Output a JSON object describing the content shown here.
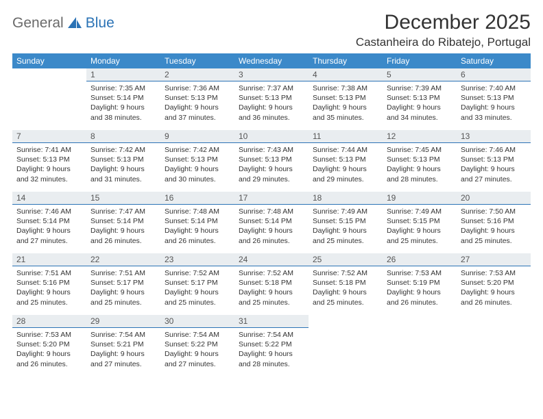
{
  "logo": {
    "text1": "General",
    "text2": "Blue"
  },
  "title": "December 2025",
  "location": "Castanheira do Ribatejo, Portugal",
  "header_bg": "#3b89c9",
  "bar_bg": "#e9edf0",
  "bar_border": "#2a72b5",
  "weekdays": [
    "Sunday",
    "Monday",
    "Tuesday",
    "Wednesday",
    "Thursday",
    "Friday",
    "Saturday"
  ],
  "first_weekday": 1,
  "days": [
    {
      "n": 1,
      "sunrise": "7:35 AM",
      "sunset": "5:14 PM",
      "dl": "9 hours and 38 minutes."
    },
    {
      "n": 2,
      "sunrise": "7:36 AM",
      "sunset": "5:13 PM",
      "dl": "9 hours and 37 minutes."
    },
    {
      "n": 3,
      "sunrise": "7:37 AM",
      "sunset": "5:13 PM",
      "dl": "9 hours and 36 minutes."
    },
    {
      "n": 4,
      "sunrise": "7:38 AM",
      "sunset": "5:13 PM",
      "dl": "9 hours and 35 minutes."
    },
    {
      "n": 5,
      "sunrise": "7:39 AM",
      "sunset": "5:13 PM",
      "dl": "9 hours and 34 minutes."
    },
    {
      "n": 6,
      "sunrise": "7:40 AM",
      "sunset": "5:13 PM",
      "dl": "9 hours and 33 minutes."
    },
    {
      "n": 7,
      "sunrise": "7:41 AM",
      "sunset": "5:13 PM",
      "dl": "9 hours and 32 minutes."
    },
    {
      "n": 8,
      "sunrise": "7:42 AM",
      "sunset": "5:13 PM",
      "dl": "9 hours and 31 minutes."
    },
    {
      "n": 9,
      "sunrise": "7:42 AM",
      "sunset": "5:13 PM",
      "dl": "9 hours and 30 minutes."
    },
    {
      "n": 10,
      "sunrise": "7:43 AM",
      "sunset": "5:13 PM",
      "dl": "9 hours and 29 minutes."
    },
    {
      "n": 11,
      "sunrise": "7:44 AM",
      "sunset": "5:13 PM",
      "dl": "9 hours and 29 minutes."
    },
    {
      "n": 12,
      "sunrise": "7:45 AM",
      "sunset": "5:13 PM",
      "dl": "9 hours and 28 minutes."
    },
    {
      "n": 13,
      "sunrise": "7:46 AM",
      "sunset": "5:13 PM",
      "dl": "9 hours and 27 minutes."
    },
    {
      "n": 14,
      "sunrise": "7:46 AM",
      "sunset": "5:14 PM",
      "dl": "9 hours and 27 minutes."
    },
    {
      "n": 15,
      "sunrise": "7:47 AM",
      "sunset": "5:14 PM",
      "dl": "9 hours and 26 minutes."
    },
    {
      "n": 16,
      "sunrise": "7:48 AM",
      "sunset": "5:14 PM",
      "dl": "9 hours and 26 minutes."
    },
    {
      "n": 17,
      "sunrise": "7:48 AM",
      "sunset": "5:14 PM",
      "dl": "9 hours and 26 minutes."
    },
    {
      "n": 18,
      "sunrise": "7:49 AM",
      "sunset": "5:15 PM",
      "dl": "9 hours and 25 minutes."
    },
    {
      "n": 19,
      "sunrise": "7:49 AM",
      "sunset": "5:15 PM",
      "dl": "9 hours and 25 minutes."
    },
    {
      "n": 20,
      "sunrise": "7:50 AM",
      "sunset": "5:16 PM",
      "dl": "9 hours and 25 minutes."
    },
    {
      "n": 21,
      "sunrise": "7:51 AM",
      "sunset": "5:16 PM",
      "dl": "9 hours and 25 minutes."
    },
    {
      "n": 22,
      "sunrise": "7:51 AM",
      "sunset": "5:17 PM",
      "dl": "9 hours and 25 minutes."
    },
    {
      "n": 23,
      "sunrise": "7:52 AM",
      "sunset": "5:17 PM",
      "dl": "9 hours and 25 minutes."
    },
    {
      "n": 24,
      "sunrise": "7:52 AM",
      "sunset": "5:18 PM",
      "dl": "9 hours and 25 minutes."
    },
    {
      "n": 25,
      "sunrise": "7:52 AM",
      "sunset": "5:18 PM",
      "dl": "9 hours and 25 minutes."
    },
    {
      "n": 26,
      "sunrise": "7:53 AM",
      "sunset": "5:19 PM",
      "dl": "9 hours and 26 minutes."
    },
    {
      "n": 27,
      "sunrise": "7:53 AM",
      "sunset": "5:20 PM",
      "dl": "9 hours and 26 minutes."
    },
    {
      "n": 28,
      "sunrise": "7:53 AM",
      "sunset": "5:20 PM",
      "dl": "9 hours and 26 minutes."
    },
    {
      "n": 29,
      "sunrise": "7:54 AM",
      "sunset": "5:21 PM",
      "dl": "9 hours and 27 minutes."
    },
    {
      "n": 30,
      "sunrise": "7:54 AM",
      "sunset": "5:22 PM",
      "dl": "9 hours and 27 minutes."
    },
    {
      "n": 31,
      "sunrise": "7:54 AM",
      "sunset": "5:22 PM",
      "dl": "9 hours and 28 minutes."
    }
  ],
  "labels": {
    "sunrise": "Sunrise:",
    "sunset": "Sunset:",
    "daylight": "Daylight:"
  }
}
